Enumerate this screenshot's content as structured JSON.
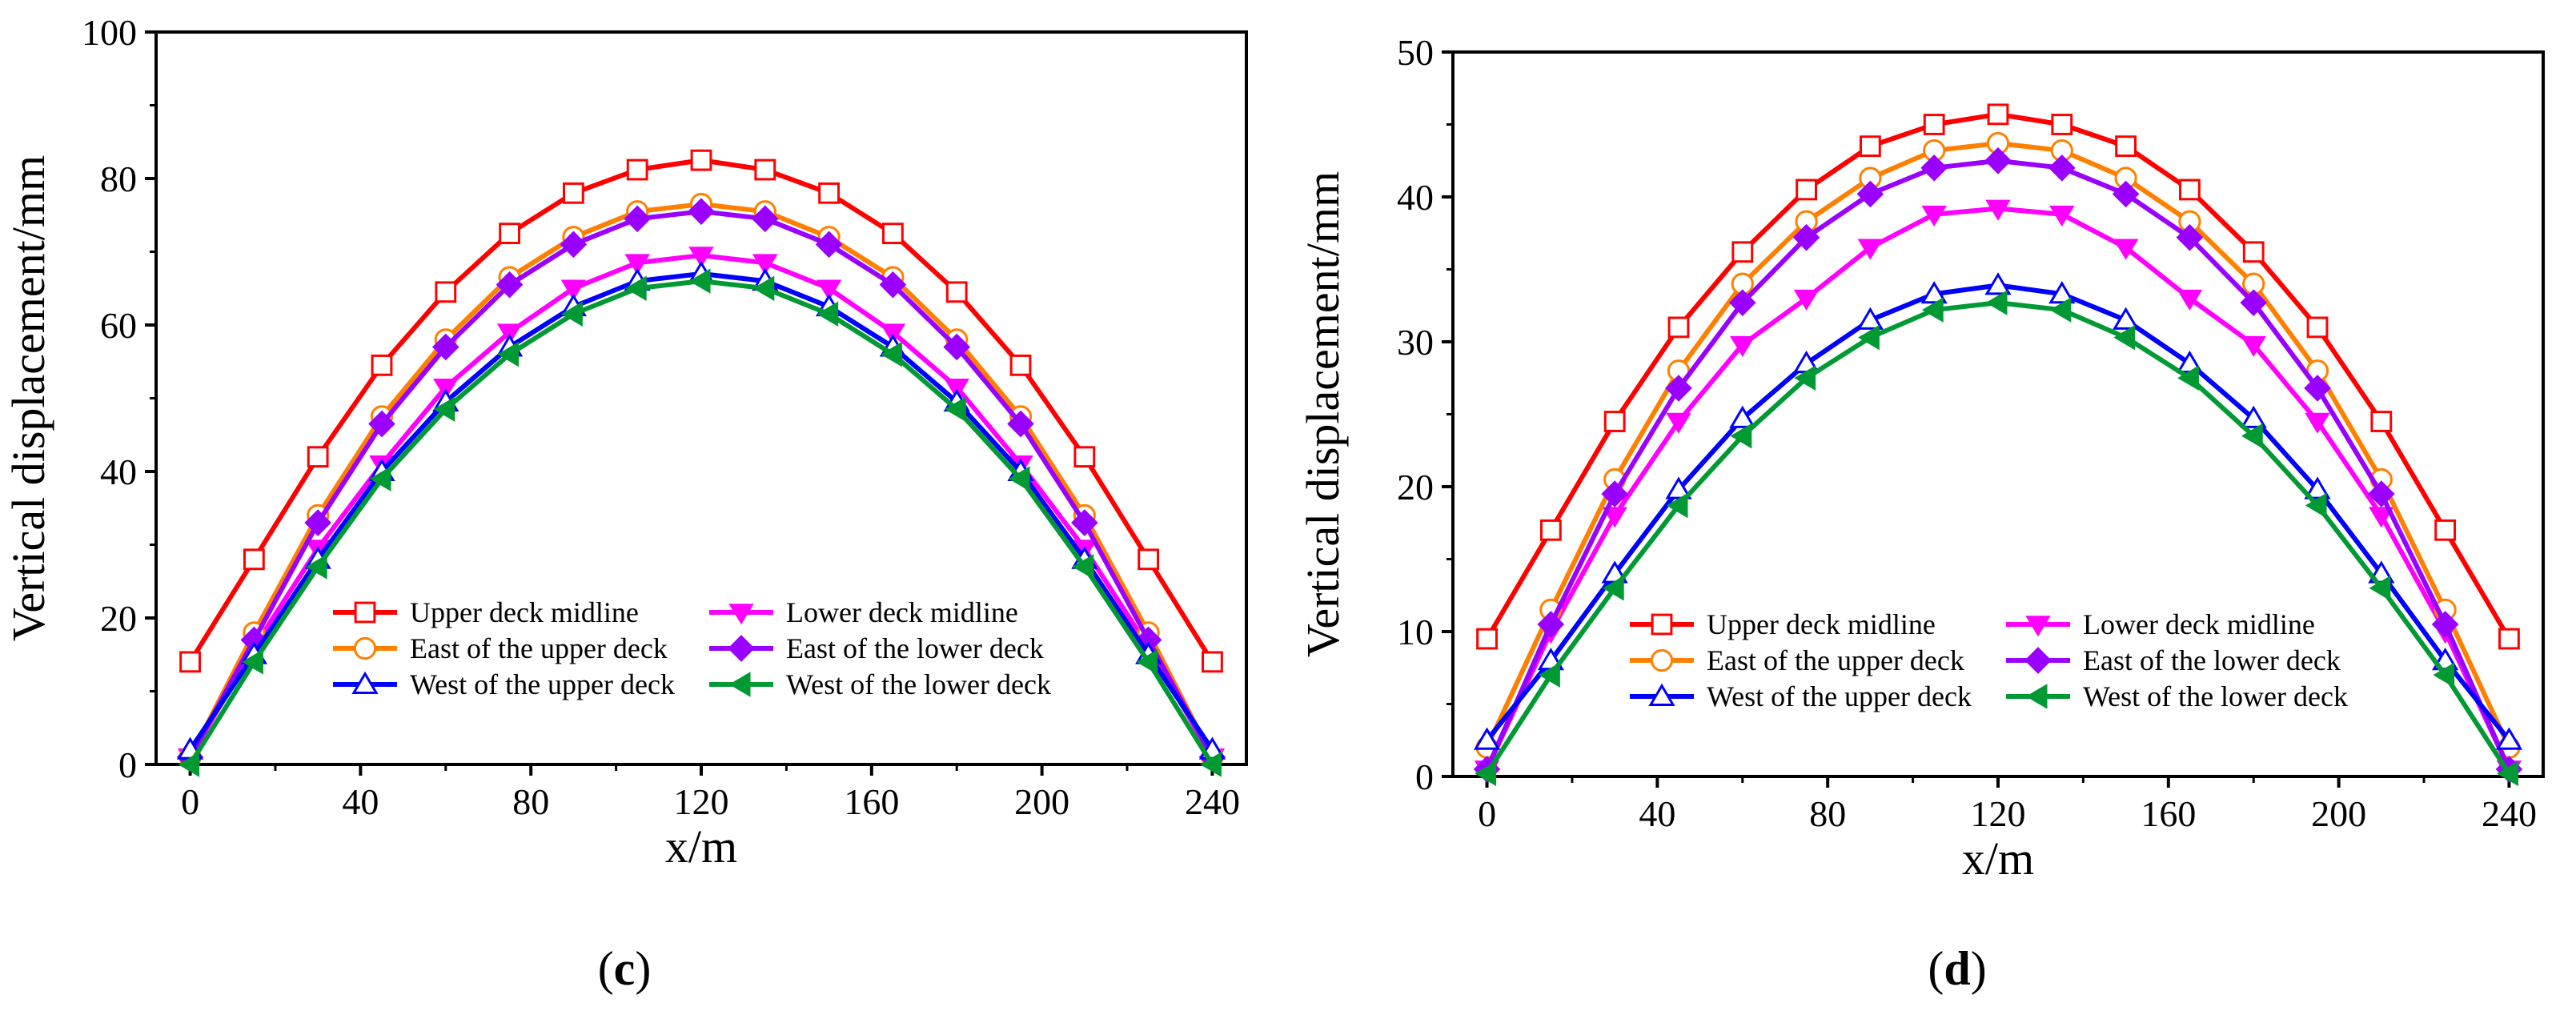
{
  "chart_data": [
    {
      "type": "line",
      "panel": "c",
      "caption_open": "(",
      "caption_close": ")",
      "xlabel": "x/m",
      "ylabel": "Vertical displacement/mm",
      "xlim": [
        -8,
        248
      ],
      "ylim": [
        0,
        100
      ],
      "xticks": [
        0,
        40,
        80,
        120,
        160,
        200,
        240
      ],
      "yticks": [
        0,
        20,
        40,
        60,
        80,
        100
      ],
      "legend_position": "bottom-center",
      "x": [
        0,
        15,
        30,
        45,
        60,
        75,
        90,
        105,
        120,
        135,
        150,
        165,
        180,
        195,
        210,
        225,
        240
      ],
      "series": [
        {
          "name": "Upper deck midline",
          "color": "#ff0000",
          "marker": "square-open",
          "values": [
            14,
            28,
            42,
            54.5,
            64.5,
            72.5,
            78,
            81.2,
            82.5,
            81.2,
            78,
            72.5,
            64.5,
            54.5,
            42,
            28,
            14
          ]
        },
        {
          "name": "Lower deck midline",
          "color": "#ff00ff",
          "marker": "triangle-down-filled",
          "values": [
            1,
            16,
            29.5,
            41,
            51.5,
            59,
            65,
            68.5,
            69.5,
            68.5,
            65,
            59,
            51.5,
            41,
            29.5,
            16,
            1
          ]
        },
        {
          "name": "East of the upper deck",
          "color": "#ff8000",
          "marker": "circle-open",
          "values": [
            1,
            18,
            34,
            47.5,
            58,
            66.5,
            72,
            75.5,
            76.5,
            75.5,
            72,
            66.5,
            58,
            47.5,
            34,
            18,
            1
          ]
        },
        {
          "name": "East of the lower deck",
          "color": "#9900ff",
          "marker": "diamond-filled",
          "values": [
            1,
            17,
            33,
            46.5,
            57,
            65.5,
            71,
            74.5,
            75.5,
            74.5,
            71,
            65.5,
            57,
            46.5,
            33,
            17,
            1
          ]
        },
        {
          "name": "West of the upper deck",
          "color": "#0000ff",
          "marker": "triangle-up-open",
          "values": [
            2,
            15,
            28,
            40,
            49.5,
            57,
            62.5,
            66,
            67,
            66,
            62.5,
            57,
            49.5,
            40,
            28,
            15,
            2
          ]
        },
        {
          "name": "West of the lower deck",
          "color": "#009933",
          "marker": "triangle-left-filled",
          "values": [
            0,
            14,
            27,
            39,
            48.5,
            56,
            61.5,
            65,
            66,
            65,
            61.5,
            56,
            48.5,
            39,
            27,
            14,
            0
          ]
        }
      ]
    },
    {
      "type": "line",
      "panel": "d",
      "caption_open": "(",
      "caption_close": ")",
      "xlabel": "x/m",
      "ylabel": "Vertical displacement/mm",
      "xlim": [
        -8,
        248
      ],
      "ylim": [
        0,
        50
      ],
      "xticks": [
        0,
        40,
        80,
        120,
        160,
        200,
        240
      ],
      "yticks": [
        0,
        10,
        20,
        30,
        40,
        50
      ],
      "legend_position": "bottom-center",
      "x": [
        0,
        15,
        30,
        45,
        60,
        75,
        90,
        105,
        120,
        135,
        150,
        165,
        180,
        195,
        210,
        225,
        240
      ],
      "series": [
        {
          "name": "Upper deck midline",
          "color": "#ff0000",
          "marker": "square-open",
          "values": [
            9.5,
            17,
            24.5,
            31,
            36.2,
            40.5,
            43.5,
            45,
            45.7,
            45,
            43.5,
            40.5,
            36.2,
            31,
            24.5,
            17,
            9.5
          ]
        },
        {
          "name": "Lower deck midline",
          "color": "#ff00ff",
          "marker": "triangle-down-filled",
          "values": [
            0.5,
            10,
            18,
            24.5,
            29.8,
            33,
            36.5,
            38.8,
            39.2,
            38.8,
            36.5,
            33,
            29.8,
            24.5,
            18,
            10,
            0.5
          ]
        },
        {
          "name": "East of the upper deck",
          "color": "#ff8000",
          "marker": "circle-open",
          "values": [
            2,
            11.5,
            20.5,
            28,
            34,
            38.3,
            41.3,
            43.2,
            43.7,
            43.2,
            41.3,
            38.3,
            34,
            28,
            20.5,
            11.5,
            2
          ]
        },
        {
          "name": "East of the lower deck",
          "color": "#9900ff",
          "marker": "diamond-filled",
          "values": [
            0.5,
            10.5,
            19.5,
            26.8,
            32.7,
            37.2,
            40.2,
            42,
            42.5,
            42,
            40.2,
            37.2,
            32.7,
            26.8,
            19.5,
            10.5,
            0.5
          ]
        },
        {
          "name": "West of the upper deck",
          "color": "#0000ff",
          "marker": "triangle-up-open",
          "values": [
            2.5,
            8,
            14,
            19.8,
            24.7,
            28.5,
            31.5,
            33.3,
            33.9,
            33.3,
            31.5,
            28.5,
            24.7,
            19.8,
            14,
            8,
            2.5
          ]
        },
        {
          "name": "West of the lower deck",
          "color": "#009933",
          "marker": "triangle-left-filled",
          "values": [
            0.2,
            7,
            13,
            18.7,
            23.5,
            27.5,
            30.3,
            32.2,
            32.7,
            32.2,
            30.3,
            27.5,
            23.5,
            18.7,
            13,
            7,
            0.2
          ]
        }
      ]
    }
  ]
}
